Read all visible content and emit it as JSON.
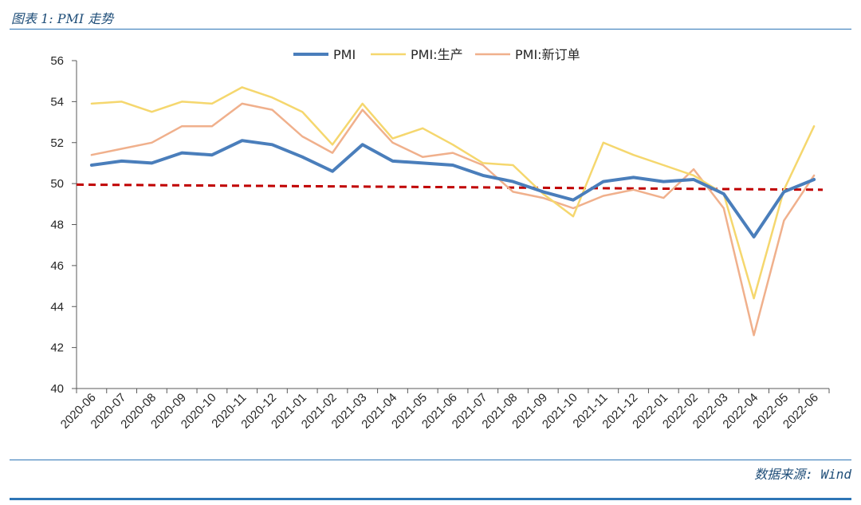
{
  "header": {
    "title": "图表 1: PMI 走势"
  },
  "footer": {
    "source": "数据来源: Wind"
  },
  "chart_data": {
    "type": "line",
    "title": "",
    "xlabel": "",
    "ylabel": "",
    "ylim": [
      40,
      56
    ],
    "yticks": [
      40,
      42,
      44,
      46,
      48,
      50,
      52,
      54,
      56
    ],
    "legend_position": "top-center",
    "categories": [
      "2020-06",
      "2020-07",
      "2020-08",
      "2020-09",
      "2020-10",
      "2020-11",
      "2020-12",
      "2021-01",
      "2021-02",
      "2021-03",
      "2021-04",
      "2021-05",
      "2021-06",
      "2021-07",
      "2021-08",
      "2021-09",
      "2021-10",
      "2021-11",
      "2021-12",
      "2022-01",
      "2022-02",
      "2022-03",
      "2022-04",
      "2022-05",
      "2022-06"
    ],
    "series": [
      {
        "name": "PMI",
        "color": "#4a7ebb",
        "width": 4,
        "values": [
          50.9,
          51.1,
          51.0,
          51.5,
          51.4,
          52.1,
          51.9,
          51.3,
          50.6,
          51.9,
          51.1,
          51.0,
          50.9,
          50.4,
          50.1,
          49.6,
          49.2,
          50.1,
          50.3,
          50.1,
          50.2,
          49.5,
          47.4,
          49.6,
          50.2
        ]
      },
      {
        "name": "PMI:生产",
        "color": "#f5d76e",
        "width": 2.5,
        "values": [
          53.9,
          54.0,
          53.5,
          54.0,
          53.9,
          54.7,
          54.2,
          53.5,
          51.9,
          53.9,
          52.2,
          52.7,
          51.9,
          51.0,
          50.9,
          49.5,
          48.4,
          52.0,
          51.4,
          50.9,
          50.4,
          49.5,
          44.4,
          49.7,
          52.8
        ]
      },
      {
        "name": "PMI:新订单",
        "color": "#f0b08c",
        "width": 2.5,
        "values": [
          51.4,
          51.7,
          52.0,
          52.8,
          52.8,
          53.9,
          53.6,
          52.3,
          51.5,
          53.6,
          52.0,
          51.3,
          51.5,
          50.9,
          49.6,
          49.3,
          48.8,
          49.4,
          49.7,
          49.3,
          50.7,
          48.8,
          42.6,
          48.2,
          50.4
        ]
      }
    ],
    "trendline": {
      "color": "#c00000",
      "style": "dashed",
      "start": 49.95,
      "end": 49.7
    }
  }
}
